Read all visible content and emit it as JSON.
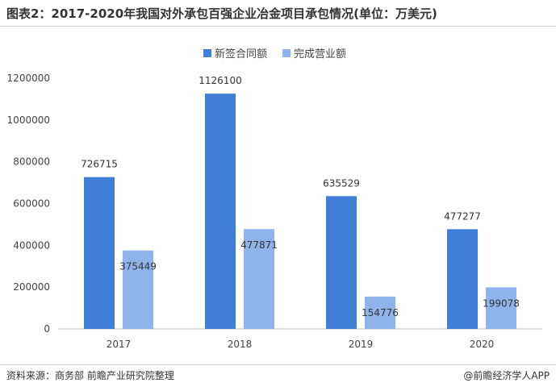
{
  "title": "图表2：2017-2020年我国对外承包百强企业冶金项目承包情况(单位：万美元)",
  "source": "资料来源：商务部 前瞻产业研究院整理",
  "credit": "@前瞻经济学人APP",
  "colors": {
    "series1": "#3f7fd8",
    "series2": "#8fb4eb"
  },
  "chart_data": {
    "type": "bar",
    "categories": [
      "2017",
      "2018",
      "2019",
      "2020"
    ],
    "series": [
      {
        "name": "新签合同额",
        "values": [
          726715,
          1126100,
          635529,
          477277
        ]
      },
      {
        "name": "完成营业额",
        "values": [
          375449,
          477871,
          154776,
          199078
        ]
      }
    ],
    "ylim": [
      0,
      1200000
    ],
    "yticks": [
      "0",
      "200000",
      "400000",
      "600000",
      "800000",
      "1000000",
      "1200000"
    ],
    "legend": "top-center",
    "grid": false
  }
}
